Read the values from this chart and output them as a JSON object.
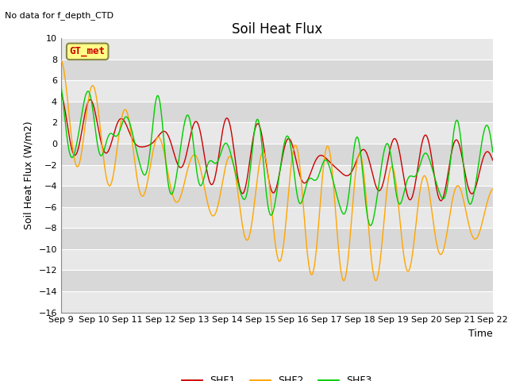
{
  "title": "Soil Heat Flux",
  "top_left_text": "No data for f_depth_CTD",
  "box_label": "GT_met",
  "ylabel": "Soil Heat Flux (W/m2)",
  "xlabel": "Time",
  "ylim": [
    -16,
    10
  ],
  "yticks": [
    -16,
    -14,
    -12,
    -10,
    -8,
    -6,
    -4,
    -2,
    0,
    2,
    4,
    6,
    8,
    10
  ],
  "xtick_labels": [
    "Sep 9",
    "Sep 10",
    "Sep 11",
    "Sep 12",
    "Sep 13",
    "Sep 14",
    "Sep 15",
    "Sep 16",
    "Sep 17",
    "Sep 18",
    "Sep 19",
    "Sep 20",
    "Sep 21",
    "Sep 22"
  ],
  "colors": {
    "SHF1": "#cc0000",
    "SHF2": "#ffa500",
    "SHF3": "#00cc00"
  },
  "fig_bg": "#ffffff",
  "plot_bg": "#e8e8e8",
  "band_color": "#d0d0d0",
  "grid_color": "#ffffff",
  "title_fontsize": 12,
  "axis_label_fontsize": 9,
  "tick_fontsize": 8
}
